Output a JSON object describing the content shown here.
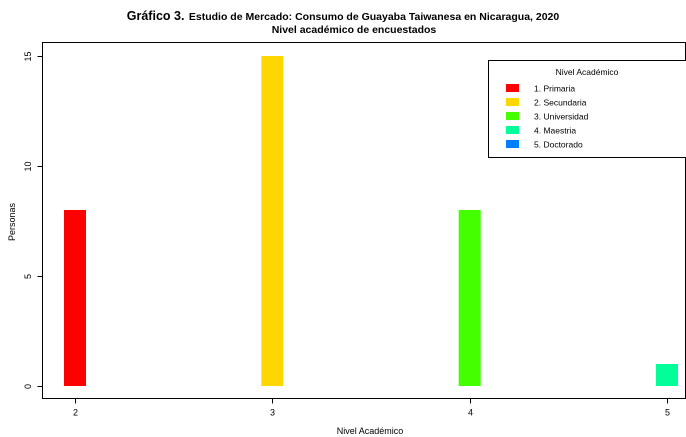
{
  "chart_data": {
    "type": "bar",
    "title_lead": "Gráfico 3.",
    "title_rest": "Estudio de Mercado: Consumo de Guayaba Taiwanesa en Nicaragua, 2020",
    "subtitle": "Nivel académico de encuestados",
    "xlabel": "Nivel Académico",
    "ylabel": "Personas",
    "x_ticks": [
      "2",
      "3",
      "4",
      "5"
    ],
    "y_ticks": [
      "0",
      "5",
      "10",
      "15"
    ],
    "xlim": [
      2,
      5
    ],
    "ylim": [
      0,
      15
    ],
    "bars": [
      {
        "x": 2,
        "value": 8,
        "color": "#ff0000"
      },
      {
        "x": 3,
        "value": 15,
        "color": "#ffd700"
      },
      {
        "x": 4,
        "value": 8,
        "color": "#44ff00"
      },
      {
        "x": 5,
        "value": 1,
        "color": "#00ff99"
      }
    ],
    "legend": {
      "title": "Nivel Académico",
      "position": "top-right",
      "entries": [
        {
          "label": "1. Primaria",
          "color": "#ff0000"
        },
        {
          "label": "2. Secundaria",
          "color": "#ffd700"
        },
        {
          "label": "3. Universidad",
          "color": "#44ff00"
        },
        {
          "label": "4. Maestria",
          "color": "#00ff99"
        },
        {
          "label": "5. Doctorado",
          "color": "#0080ff"
        }
      ]
    }
  }
}
